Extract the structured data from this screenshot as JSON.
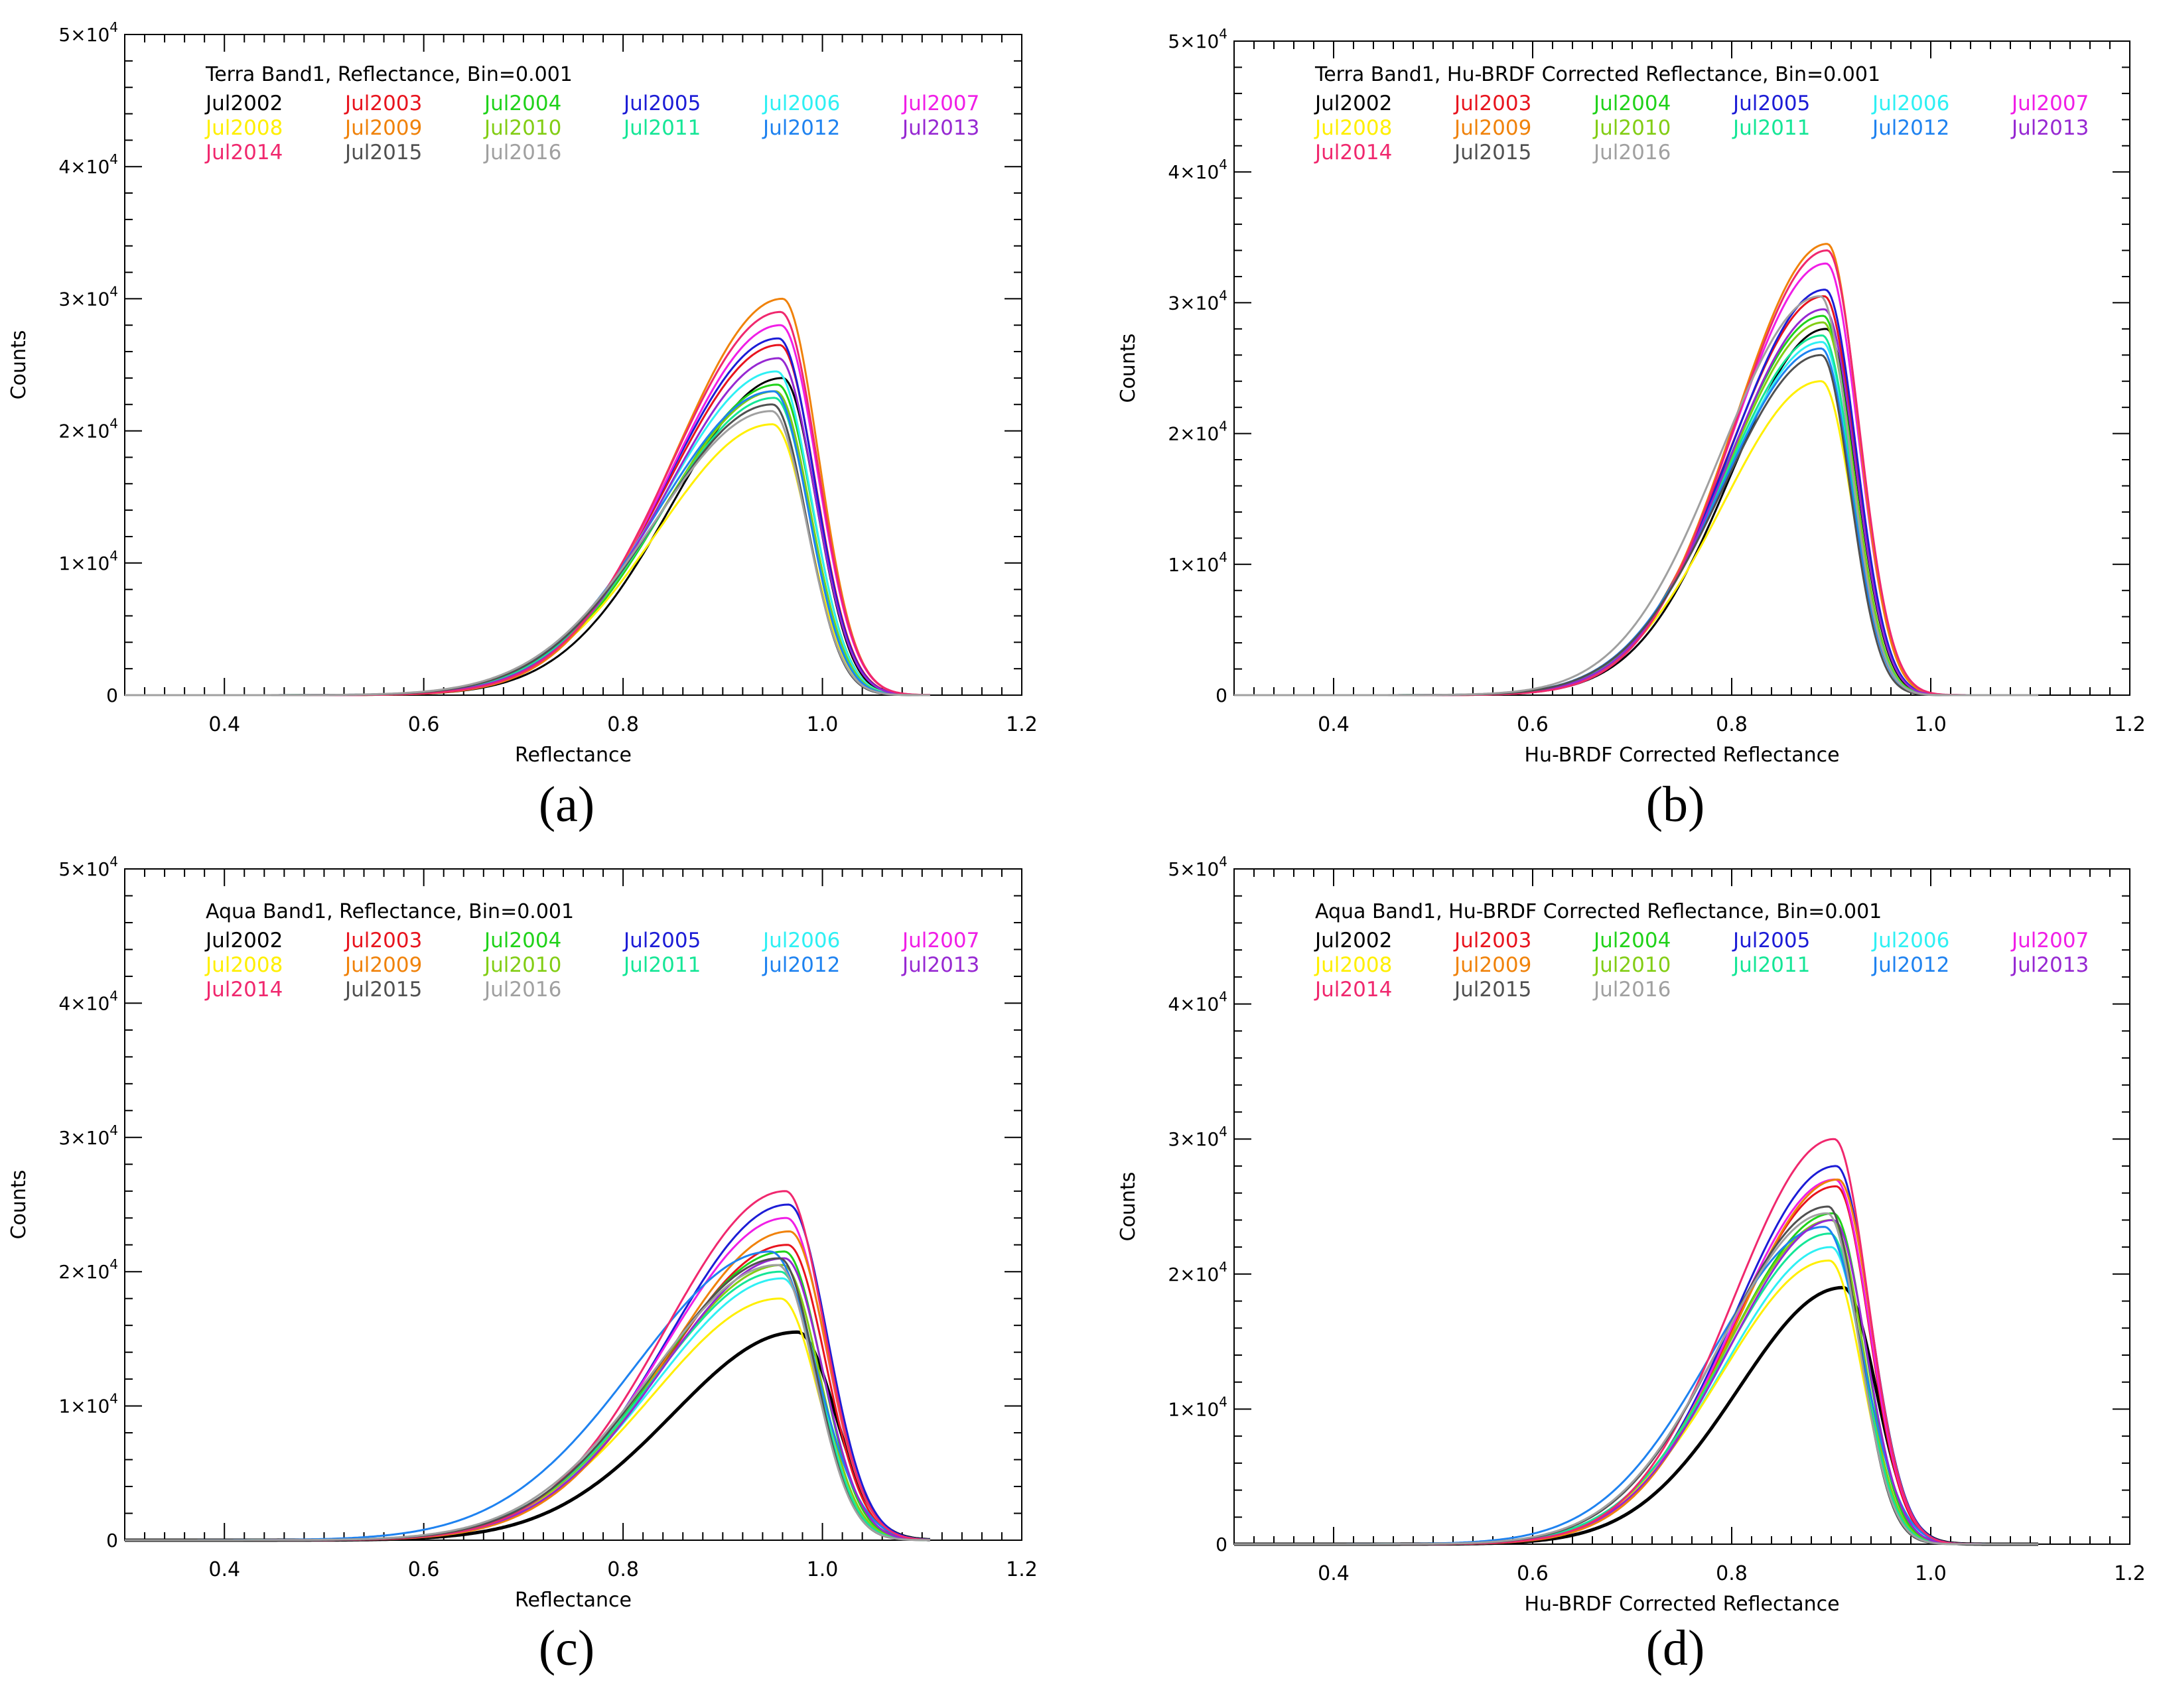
{
  "figure": {
    "panel_labels": [
      "(a)",
      "(b)",
      "(c)",
      "(d)"
    ]
  },
  "series_styles": [
    {
      "name": "Jul2002",
      "color": "#000000"
    },
    {
      "name": "Jul2003",
      "color": "#e8141e"
    },
    {
      "name": "Jul2004",
      "color": "#20d21a"
    },
    {
      "name": "Jul2005",
      "color": "#1c1cd6"
    },
    {
      "name": "Jul2006",
      "color": "#2ef0f4"
    },
    {
      "name": "Jul2007",
      "color": "#f01ee6"
    },
    {
      "name": "Jul2008",
      "color": "#ffef00"
    },
    {
      "name": "Jul2009",
      "color": "#f0820a"
    },
    {
      "name": "Jul2010",
      "color": "#82cd14"
    },
    {
      "name": "Jul2011",
      "color": "#14e696"
    },
    {
      "name": "Jul2012",
      "color": "#1e82f0"
    },
    {
      "name": "Jul2013",
      "color": "#9628d2"
    },
    {
      "name": "Jul2014",
      "color": "#f0286e"
    },
    {
      "name": "Jul2015",
      "color": "#505050"
    },
    {
      "name": "Jul2016",
      "color": "#a0a0a0"
    }
  ],
  "chart_data": [
    {
      "panel": "(a)",
      "type": "line",
      "title": "Terra Band1, Reflectance, Bin=0.001",
      "xlabel": "Reflectance",
      "ylabel": "Counts",
      "xlim": [
        0.3,
        1.2
      ],
      "ylim": [
        0,
        50000
      ],
      "x_ticks": [
        0.4,
        0.6,
        0.8,
        1.0,
        1.2
      ],
      "x_tick_labels": [
        "0.4",
        "0.6",
        "0.8",
        "1.0",
        "1.2"
      ],
      "y_ticks": [
        0,
        10000,
        20000,
        30000,
        40000,
        50000
      ],
      "y_tick_labels": [
        {
          "base": "0",
          "exp": ""
        },
        {
          "base": "1×10",
          "exp": "4"
        },
        {
          "base": "2×10",
          "exp": "4"
        },
        {
          "base": "3×10",
          "exp": "4"
        },
        {
          "base": "4×10",
          "exp": "4"
        },
        {
          "base": "5×10",
          "exp": "4"
        }
      ],
      "legend_position": "top-left",
      "series": [
        {
          "name": "Jul2002",
          "peak_x": 0.96,
          "peak": 24000,
          "left_width": 0.11,
          "right_width": 0.034
        },
        {
          "name": "Jul2003",
          "peak_x": 0.957,
          "peak": 26500,
          "left_width": 0.112,
          "right_width": 0.036
        },
        {
          "name": "Jul2004",
          "peak_x": 0.955,
          "peak": 23500,
          "left_width": 0.113,
          "right_width": 0.035
        },
        {
          "name": "Jul2005",
          "peak_x": 0.956,
          "peak": 27000,
          "left_width": 0.111,
          "right_width": 0.036
        },
        {
          "name": "Jul2006",
          "peak_x": 0.954,
          "peak": 24500,
          "left_width": 0.114,
          "right_width": 0.035
        },
        {
          "name": "Jul2007",
          "peak_x": 0.958,
          "peak": 28000,
          "left_width": 0.11,
          "right_width": 0.037
        },
        {
          "name": "Jul2008",
          "peak_x": 0.95,
          "peak": 20500,
          "left_width": 0.115,
          "right_width": 0.036
        },
        {
          "name": "Jul2009",
          "peak_x": 0.96,
          "peak": 30000,
          "left_width": 0.108,
          "right_width": 0.036
        },
        {
          "name": "Jul2010",
          "peak_x": 0.953,
          "peak": 23000,
          "left_width": 0.114,
          "right_width": 0.035
        },
        {
          "name": "Jul2011",
          "peak_x": 0.952,
          "peak": 22500,
          "left_width": 0.115,
          "right_width": 0.035
        },
        {
          "name": "Jul2012",
          "peak_x": 0.951,
          "peak": 23000,
          "left_width": 0.116,
          "right_width": 0.035
        },
        {
          "name": "Jul2013",
          "peak_x": 0.956,
          "peak": 25500,
          "left_width": 0.112,
          "right_width": 0.036
        },
        {
          "name": "Jul2014",
          "peak_x": 0.958,
          "peak": 29000,
          "left_width": 0.109,
          "right_width": 0.037
        },
        {
          "name": "Jul2015",
          "peak_x": 0.95,
          "peak": 22000,
          "left_width": 0.116,
          "right_width": 0.034
        },
        {
          "name": "Jul2016",
          "peak_x": 0.949,
          "peak": 21500,
          "left_width": 0.118,
          "right_width": 0.035
        }
      ]
    },
    {
      "panel": "(b)",
      "type": "line",
      "title": "Terra Band1, Hu-BRDF Corrected Reflectance, Bin=0.001",
      "xlabel": "Hu-BRDF Corrected Reflectance",
      "ylabel": "Counts",
      "xlim": [
        0.3,
        1.2
      ],
      "ylim": [
        0,
        50000
      ],
      "x_ticks": [
        0.4,
        0.6,
        0.8,
        1.0,
        1.2
      ],
      "x_tick_labels": [
        "0.4",
        "0.6",
        "0.8",
        "1.0",
        "1.2"
      ],
      "y_ticks": [
        0,
        10000,
        20000,
        30000,
        40000,
        50000
      ],
      "y_tick_labels": [
        {
          "base": "0",
          "exp": ""
        },
        {
          "base": "1×10",
          "exp": "4"
        },
        {
          "base": "2×10",
          "exp": "4"
        },
        {
          "base": "3×10",
          "exp": "4"
        },
        {
          "base": "4×10",
          "exp": "4"
        },
        {
          "base": "5×10",
          "exp": "4"
        }
      ],
      "legend_position": "top-left",
      "series": [
        {
          "name": "Jul2002",
          "peak_x": 0.895,
          "peak": 28000,
          "left_width": 0.095,
          "right_width": 0.03
        },
        {
          "name": "Jul2003",
          "peak_x": 0.893,
          "peak": 30500,
          "left_width": 0.096,
          "right_width": 0.031
        },
        {
          "name": "Jul2004",
          "peak_x": 0.892,
          "peak": 29000,
          "left_width": 0.097,
          "right_width": 0.03
        },
        {
          "name": "Jul2005",
          "peak_x": 0.894,
          "peak": 31000,
          "left_width": 0.095,
          "right_width": 0.031
        },
        {
          "name": "Jul2006",
          "peak_x": 0.891,
          "peak": 27000,
          "left_width": 0.098,
          "right_width": 0.03
        },
        {
          "name": "Jul2007",
          "peak_x": 0.895,
          "peak": 33000,
          "left_width": 0.094,
          "right_width": 0.032
        },
        {
          "name": "Jul2008",
          "peak_x": 0.89,
          "peak": 24000,
          "left_width": 0.099,
          "right_width": 0.031
        },
        {
          "name": "Jul2009",
          "peak_x": 0.896,
          "peak": 34500,
          "left_width": 0.093,
          "right_width": 0.031
        },
        {
          "name": "Jul2010",
          "peak_x": 0.892,
          "peak": 28500,
          "left_width": 0.097,
          "right_width": 0.03
        },
        {
          "name": "Jul2011",
          "peak_x": 0.891,
          "peak": 27500,
          "left_width": 0.098,
          "right_width": 0.03
        },
        {
          "name": "Jul2012",
          "peak_x": 0.89,
          "peak": 26500,
          "left_width": 0.099,
          "right_width": 0.03
        },
        {
          "name": "Jul2013",
          "peak_x": 0.893,
          "peak": 29500,
          "left_width": 0.096,
          "right_width": 0.031
        },
        {
          "name": "Jul2014",
          "peak_x": 0.896,
          "peak": 34000,
          "left_width": 0.093,
          "right_width": 0.032
        },
        {
          "name": "Jul2015",
          "peak_x": 0.89,
          "peak": 26000,
          "left_width": 0.099,
          "right_width": 0.029
        },
        {
          "name": "Jul2016",
          "peak_x": 0.889,
          "peak": 30500,
          "left_width": 0.1,
          "right_width": 0.03
        }
      ]
    },
    {
      "panel": "(c)",
      "type": "line",
      "title": "Aqua Band1, Reflectance, Bin=0.001",
      "xlabel": "Reflectance",
      "ylabel": "Counts",
      "xlim": [
        0.3,
        1.2
      ],
      "ylim": [
        0,
        50000
      ],
      "x_ticks": [
        0.4,
        0.6,
        0.8,
        1.0,
        1.2
      ],
      "x_tick_labels": [
        "0.4",
        "0.6",
        "0.8",
        "1.0",
        "1.2"
      ],
      "y_ticks": [
        0,
        10000,
        20000,
        30000,
        40000,
        50000
      ],
      "y_tick_labels": [
        {
          "base": "0",
          "exp": ""
        },
        {
          "base": "1×10",
          "exp": "4"
        },
        {
          "base": "2×10",
          "exp": "4"
        },
        {
          "base": "3×10",
          "exp": "4"
        },
        {
          "base": "4×10",
          "exp": "4"
        },
        {
          "base": "5×10",
          "exp": "4"
        }
      ],
      "legend_position": "top-left",
      "series": [
        {
          "name": "Jul2002",
          "peak_x": 0.975,
          "peak": 15500,
          "left_width": 0.125,
          "right_width": 0.038
        },
        {
          "name": "Jul2003",
          "peak_x": 0.965,
          "peak": 22000,
          "left_width": 0.122,
          "right_width": 0.038
        },
        {
          "name": "Jul2004",
          "peak_x": 0.962,
          "peak": 21500,
          "left_width": 0.124,
          "right_width": 0.037
        },
        {
          "name": "Jul2005",
          "peak_x": 0.966,
          "peak": 25000,
          "left_width": 0.12,
          "right_width": 0.039
        },
        {
          "name": "Jul2006",
          "peak_x": 0.96,
          "peak": 19500,
          "left_width": 0.126,
          "right_width": 0.037
        },
        {
          "name": "Jul2007",
          "peak_x": 0.964,
          "peak": 24000,
          "left_width": 0.121,
          "right_width": 0.039
        },
        {
          "name": "Jul2008",
          "peak_x": 0.958,
          "peak": 18000,
          "left_width": 0.127,
          "right_width": 0.038
        },
        {
          "name": "Jul2009",
          "peak_x": 0.967,
          "peak": 23000,
          "left_width": 0.121,
          "right_width": 0.038
        },
        {
          "name": "Jul2010",
          "peak_x": 0.96,
          "peak": 20500,
          "left_width": 0.125,
          "right_width": 0.037
        },
        {
          "name": "Jul2011",
          "peak_x": 0.958,
          "peak": 20000,
          "left_width": 0.126,
          "right_width": 0.037
        },
        {
          "name": "Jul2012",
          "peak_x": 0.948,
          "peak": 21500,
          "left_width": 0.135,
          "right_width": 0.045
        },
        {
          "name": "Jul2013",
          "peak_x": 0.962,
          "peak": 21000,
          "left_width": 0.123,
          "right_width": 0.038
        },
        {
          "name": "Jul2014",
          "peak_x": 0.963,
          "peak": 26000,
          "left_width": 0.12,
          "right_width": 0.039
        },
        {
          "name": "Jul2015",
          "peak_x": 0.957,
          "peak": 21000,
          "left_width": 0.124,
          "right_width": 0.036
        },
        {
          "name": "Jul2016",
          "peak_x": 0.955,
          "peak": 20500,
          "left_width": 0.126,
          "right_width": 0.037
        }
      ]
    },
    {
      "panel": "(d)",
      "type": "line",
      "title": "Aqua Band1, Hu-BRDF Corrected Reflectance, Bin=0.001",
      "xlabel": "Hu-BRDF Corrected Reflectance",
      "ylabel": "Counts",
      "xlim": [
        0.3,
        1.2
      ],
      "ylim": [
        0,
        50000
      ],
      "x_ticks": [
        0.4,
        0.6,
        0.8,
        1.0,
        1.2
      ],
      "x_tick_labels": [
        "0.4",
        "0.6",
        "0.8",
        "1.0",
        "1.2"
      ],
      "y_ticks": [
        0,
        10000,
        20000,
        30000,
        40000,
        50000
      ],
      "y_tick_labels": [
        {
          "base": "0",
          "exp": ""
        },
        {
          "base": "1×10",
          "exp": "4"
        },
        {
          "base": "2×10",
          "exp": "4"
        },
        {
          "base": "3×10",
          "exp": "4"
        },
        {
          "base": "4×10",
          "exp": "4"
        },
        {
          "base": "5×10",
          "exp": "4"
        }
      ],
      "legend_position": "top-left",
      "series": [
        {
          "name": "Jul2002",
          "peak_x": 0.912,
          "peak": 19000,
          "left_width": 0.105,
          "right_width": 0.033
        },
        {
          "name": "Jul2003",
          "peak_x": 0.905,
          "peak": 26500,
          "left_width": 0.103,
          "right_width": 0.033
        },
        {
          "name": "Jul2004",
          "peak_x": 0.902,
          "peak": 24500,
          "left_width": 0.105,
          "right_width": 0.032
        },
        {
          "name": "Jul2005",
          "peak_x": 0.905,
          "peak": 28000,
          "left_width": 0.102,
          "right_width": 0.034
        },
        {
          "name": "Jul2006",
          "peak_x": 0.9,
          "peak": 22000,
          "left_width": 0.106,
          "right_width": 0.032
        },
        {
          "name": "Jul2007",
          "peak_x": 0.904,
          "peak": 27000,
          "left_width": 0.102,
          "right_width": 0.034
        },
        {
          "name": "Jul2008",
          "peak_x": 0.898,
          "peak": 21000,
          "left_width": 0.107,
          "right_width": 0.033
        },
        {
          "name": "Jul2009",
          "peak_x": 0.907,
          "peak": 27000,
          "left_width": 0.102,
          "right_width": 0.033
        },
        {
          "name": "Jul2010",
          "peak_x": 0.9,
          "peak": 24000,
          "left_width": 0.105,
          "right_width": 0.032
        },
        {
          "name": "Jul2011",
          "peak_x": 0.899,
          "peak": 23000,
          "left_width": 0.106,
          "right_width": 0.032
        },
        {
          "name": "Jul2012",
          "peak_x": 0.893,
          "peak": 23500,
          "left_width": 0.112,
          "right_width": 0.038
        },
        {
          "name": "Jul2013",
          "peak_x": 0.902,
          "peak": 24000,
          "left_width": 0.104,
          "right_width": 0.033
        },
        {
          "name": "Jul2014",
          "peak_x": 0.903,
          "peak": 30000,
          "left_width": 0.101,
          "right_width": 0.034
        },
        {
          "name": "Jul2015",
          "peak_x": 0.897,
          "peak": 25000,
          "left_width": 0.106,
          "right_width": 0.031
        },
        {
          "name": "Jul2016",
          "peak_x": 0.896,
          "peak": 24500,
          "left_width": 0.107,
          "right_width": 0.032
        }
      ]
    }
  ]
}
